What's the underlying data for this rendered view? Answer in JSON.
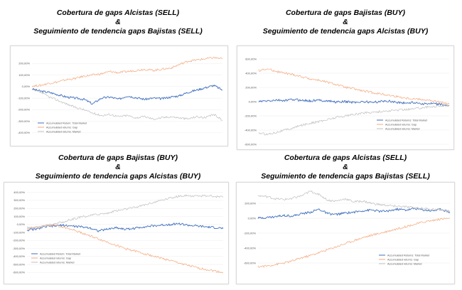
{
  "panels": [
    {
      "title_line1": "Cobertura de gaps Alcistas (SELL)",
      "title_amp": "&",
      "title_line2": "Seguimiento de tendencia gaps Bajistas (SELL)"
    },
    {
      "title_line1": "Cobertura de gaps Bajistas (BUY)",
      "title_amp": "&",
      "title_line2": "Seguimiento de tendencia gaps Alcistas (BUY)"
    },
    {
      "title_line1": "Cobertura de gaps Bajistas (BUY)",
      "title_amp": "&",
      "title_line2": "Seguimiento de tendencia gaps Alcistas (BUY)"
    },
    {
      "title_line1": "Cobertura de gaps Alcistas (SELL)",
      "title_amp": "&",
      "title_line2": "Seguimiento de tendencia gaps Bajistas (SELL)"
    }
  ],
  "colors": {
    "total_market": "#3f6fbf",
    "gap": "#f4a77a",
    "market": "#bfbfbf"
  },
  "chart_data": [
    {
      "type": "line",
      "ylim": [
        -450,
        300
      ],
      "yticks": [
        -400,
        -300,
        -200,
        -100,
        0,
        100,
        200
      ],
      "yticks_labels": [
        "-400,00%",
        "-300,00%",
        "-200,00%",
        "-100,00%",
        "0,00%",
        "100,00%",
        "200,00%"
      ],
      "legend_position": "bottom-left",
      "series": [
        {
          "name": "Accumulated Return: Total Market",
          "color": "#3f6fbf",
          "values": [
            -20,
            -40,
            -50,
            -70,
            -90,
            -100,
            -110,
            -150,
            -100,
            -90,
            -110,
            -80,
            -95,
            -110,
            -100,
            -105,
            -90,
            -80,
            -50,
            -30,
            -10,
            10,
            -30
          ]
        },
        {
          "name": "Accumulated returns: Gap",
          "color": "#f4a77a",
          "values": [
            5,
            10,
            30,
            40,
            60,
            70,
            90,
            100,
            110,
            130,
            120,
            130,
            140,
            150,
            140,
            150,
            160,
            190,
            220,
            230,
            240,
            250,
            240
          ]
        },
        {
          "name": "Accumulated returns: Market",
          "color": "#bfbfbf",
          "values": [
            -30,
            -50,
            -90,
            -120,
            -150,
            -180,
            -200,
            -230,
            -250,
            -240,
            -260,
            -250,
            -270,
            -260,
            -280,
            -270,
            -260,
            -270,
            -280,
            -260,
            -270,
            -240,
            -290
          ]
        }
      ]
    },
    {
      "type": "line",
      "ylim": [
        -600,
        700
      ],
      "yticks": [
        -600,
        -400,
        -200,
        0,
        200,
        400,
        600
      ],
      "yticks_labels": [
        "-600,00%",
        "-400,00%",
        "-200,00%",
        "0,00%",
        "200,00%",
        "400,00%",
        "600,00%"
      ],
      "legend_position": "bottom-right",
      "series": [
        {
          "name": "Accumulated Returns: Total Market",
          "color": "#3f6fbf",
          "values": [
            0,
            10,
            20,
            15,
            30,
            20,
            10,
            20,
            10,
            -5,
            0,
            -10,
            0,
            -10,
            0,
            10,
            -10,
            -20,
            -10,
            -30,
            -30,
            -40,
            -60
          ]
        },
        {
          "name": "Accumulated returns: Gap",
          "color": "#f4a77a",
          "values": [
            440,
            460,
            430,
            400,
            380,
            350,
            320,
            300,
            270,
            240,
            200,
            180,
            150,
            130,
            110,
            90,
            70,
            50,
            40,
            30,
            10,
            -10,
            -40
          ]
        },
        {
          "name": "Accumulated returns: Market",
          "color": "#bfbfbf",
          "values": [
            -440,
            -460,
            -430,
            -400,
            -370,
            -330,
            -300,
            -280,
            -250,
            -220,
            -200,
            -180,
            -160,
            -150,
            -140,
            -130,
            -120,
            -110,
            -100,
            -80,
            -70,
            -60,
            -50
          ]
        }
      ]
    },
    {
      "type": "line",
      "ylim": [
        -650,
        450
      ],
      "yticks": [
        -600,
        -500,
        -400,
        -300,
        -200,
        -100,
        0,
        100,
        200,
        300,
        400
      ],
      "yticks_labels": [
        "-600,00%",
        "-500,00%",
        "-400,00%",
        "-300,00%",
        "-200,00%",
        "-100,00%",
        "0,00%",
        "100,00%",
        "200,00%",
        "300,00%",
        "400,00%"
      ],
      "legend_position": "bottom-left",
      "series": [
        {
          "name": "Accumulated Return: Total Market",
          "color": "#3f6fbf",
          "values": [
            -70,
            -60,
            -30,
            -20,
            -10,
            -20,
            -30,
            -40,
            -80,
            -60,
            -40,
            -60,
            -50,
            -30,
            -20,
            -10,
            0,
            10,
            -10,
            -20,
            -30,
            -40,
            -50
          ]
        },
        {
          "name": "Accumulated returns: Gap",
          "color": "#f4a77a",
          "values": [
            -60,
            -40,
            -20,
            -10,
            -30,
            -60,
            -100,
            -140,
            -180,
            -220,
            -260,
            -300,
            -330,
            -360,
            -390,
            -420,
            -450,
            -480,
            -510,
            -540,
            -560,
            -580,
            -600
          ]
        },
        {
          "name": "Accumulated returns: Market",
          "color": "#bfbfbf",
          "values": [
            -40,
            -30,
            -20,
            10,
            30,
            60,
            90,
            110,
            130,
            140,
            170,
            190,
            210,
            240,
            270,
            300,
            330,
            350,
            360,
            350,
            360,
            350,
            340
          ]
        }
      ]
    },
    {
      "type": "line",
      "ylim": [
        -800,
        400
      ],
      "yticks": [
        -600,
        -400,
        -200,
        0,
        200
      ],
      "yticks_labels": [
        "-600,00%",
        "-400,00%",
        "-200,00%",
        "0,00%",
        "200,00%"
      ],
      "legend_position": "bottom-right",
      "series": [
        {
          "name": "Accumulated Returns: Total Market",
          "color": "#3f6fbf",
          "values": [
            0,
            10,
            20,
            40,
            30,
            60,
            80,
            120,
            60,
            50,
            70,
            80,
            100,
            110,
            90,
            100,
            120,
            110,
            130,
            110,
            100,
            120,
            80
          ]
        },
        {
          "name": "Accumulated returns: Gap",
          "color": "#f4a77a",
          "values": [
            -650,
            -640,
            -620,
            -600,
            -570,
            -530,
            -500,
            -460,
            -420,
            -380,
            -340,
            -300,
            -260,
            -230,
            -200,
            -170,
            -140,
            -110,
            -80,
            -50,
            -30,
            -10,
            0
          ]
        },
        {
          "name": "Accumulated returns: Market",
          "color": "#bfbfbf",
          "values": [
            300,
            290,
            260,
            250,
            270,
            300,
            360,
            320,
            240,
            230,
            260,
            220,
            230,
            200,
            180,
            170,
            160,
            150,
            140,
            130,
            120,
            110,
            100
          ]
        }
      ]
    }
  ]
}
